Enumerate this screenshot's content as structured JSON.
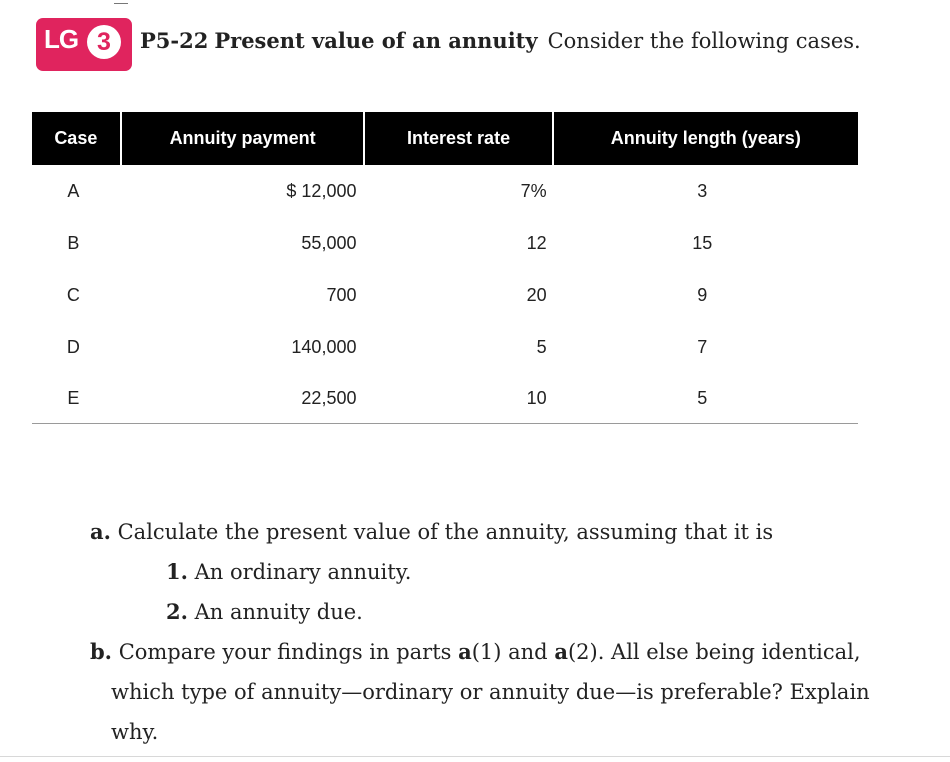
{
  "badge": {
    "prefix": "LG",
    "number": "3",
    "color": "#e0245e"
  },
  "problem": {
    "id": "P5-22",
    "title": "Present value of an annuity",
    "intro": "Consider the following cases."
  },
  "table": {
    "headers": [
      "Case",
      "Annuity payment",
      "Interest rate",
      "Annuity length (years)"
    ],
    "rows": [
      {
        "case": "A",
        "payment": "$ 12,000",
        "rate": "7%",
        "length": "3"
      },
      {
        "case": "B",
        "payment": "55,000",
        "rate": "12",
        "length": "15"
      },
      {
        "case": "C",
        "payment": "700",
        "rate": "20",
        "length": "9"
      },
      {
        "case": "D",
        "payment": "140,000",
        "rate": "5",
        "length": "7"
      },
      {
        "case": "E",
        "payment": "22,500",
        "rate": "10",
        "length": "5"
      }
    ]
  },
  "questions": {
    "a": {
      "label": "a.",
      "text": "Calculate the present value of the annuity, assuming that it is",
      "items": [
        {
          "label": "1.",
          "text": "An ordinary annuity."
        },
        {
          "label": "2.",
          "text": "An annuity due."
        }
      ]
    },
    "b": {
      "label": "b.",
      "text_1": "Compare your findings in parts",
      "ref_1_letter": "a",
      "ref_1_num": "(1)",
      "joiner": "and",
      "ref_2_letter": "a",
      "ref_2_num": "(2)",
      "text_2": ". All else being identical,",
      "line_2": "which type of annuity—ordinary or annuity due—is preferable? Explain",
      "line_3": "why."
    }
  }
}
